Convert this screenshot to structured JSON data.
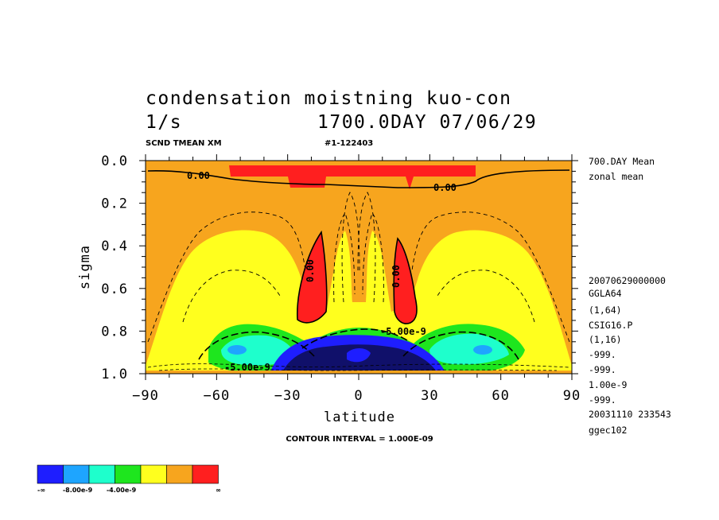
{
  "title_line1": "condensation moistning kuo-con",
  "title_line2_units": "1/s",
  "title_line2_time": "1700.0DAY 07/06/29",
  "subheader_left": "SCND TMEAN XM",
  "subheader_right": "#1-122403",
  "contour_interval": "CONTOUR INTERVAL = 1.000E-09",
  "side_info": [
    "700.DAY Mean",
    "zonal mean",
    "20070629000000",
    "GGLA64",
    "(1,64)",
    "CSIG16.P",
    "(1,16)",
    "-999.",
    "-999.",
    "1.00e-9",
    "-999.",
    "20031110 233543",
    "ggec102"
  ],
  "contour_labels": [
    "0.00",
    "0.00",
    "0.00",
    "0.00",
    "-5.00e-9",
    "-5.00e-9"
  ],
  "colors": {
    "red": "#ff1f1f",
    "orange": "#f7a51e",
    "yellow": "#ffff1e",
    "green": "#1ee61e",
    "cyan": "#1effcc",
    "lightblue": "#1ea5ff",
    "blue": "#1e1eff",
    "darkblue": "#10106a"
  },
  "chart_data": {
    "type": "contour",
    "title": "condensation moistning kuo-con",
    "units": "1/s",
    "xlabel": "latitude",
    "ylabel": "sigma",
    "xlim": [
      -90,
      90
    ],
    "ylim": [
      0.0,
      1.0
    ],
    "y_inverted": true,
    "xticks": [
      -90,
      -60,
      -30,
      0,
      30,
      60,
      90
    ],
    "xtick_labels": [
      "−90",
      "−60",
      "−30",
      "0",
      "30",
      "60",
      "90"
    ],
    "yticks": [
      0.0,
      0.2,
      0.4,
      0.6,
      0.8,
      1.0
    ],
    "ytick_labels": [
      "0.0",
      "0.2",
      "0.4",
      "0.6",
      "0.8",
      "1.0"
    ],
    "contour_interval": 1e-09,
    "legend": {
      "placement": "bottom-left",
      "colors": [
        "#1e1eff",
        "#1ea5ff",
        "#1effcc",
        "#1ee61e",
        "#ffff1e",
        "#f7a51e",
        "#ff1f1f"
      ],
      "labels": [
        "-∞",
        "-8.00e-9",
        "-4.00e-9",
        "∞"
      ]
    }
  }
}
